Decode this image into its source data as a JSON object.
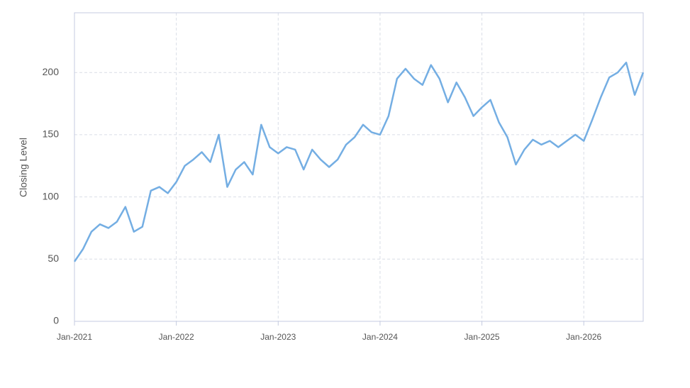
{
  "chart_data": {
    "type": "line",
    "y_label": "Closing Level",
    "x": [
      "2021-01",
      "2021-02",
      "2021-03",
      "2021-04",
      "2021-05",
      "2021-06",
      "2021-07",
      "2021-08",
      "2021-09",
      "2021-10",
      "2021-11",
      "2021-12",
      "2022-01",
      "2022-02",
      "2022-03",
      "2022-04",
      "2022-05",
      "2022-06",
      "2022-07",
      "2022-08",
      "2022-09",
      "2022-10",
      "2022-11",
      "2022-12",
      "2023-01",
      "2023-02",
      "2023-03",
      "2023-04",
      "2023-05",
      "2023-06",
      "2023-07",
      "2023-08",
      "2023-09",
      "2023-10",
      "2023-11",
      "2023-12",
      "2024-01",
      "2024-02",
      "2024-03",
      "2024-04",
      "2024-05",
      "2024-06",
      "2024-07",
      "2024-08",
      "2024-09",
      "2024-10",
      "2024-11",
      "2024-12",
      "2025-01",
      "2025-02",
      "2025-03",
      "2025-04",
      "2025-05",
      "2025-06",
      "2025-07",
      "2025-08",
      "2025-09",
      "2025-10",
      "2025-11",
      "2025-12",
      "2026-01",
      "2026-02",
      "2026-03",
      "2026-04",
      "2026-05",
      "2026-06",
      "2026-07",
      "2026-08"
    ],
    "values": [
      48,
      58,
      72,
      78,
      75,
      80,
      92,
      72,
      76,
      105,
      108,
      103,
      112,
      125,
      130,
      136,
      128,
      150,
      108,
      122,
      128,
      118,
      158,
      140,
      135,
      140,
      138,
      122,
      138,
      130,
      124,
      130,
      142,
      148,
      158,
      152,
      150,
      165,
      195,
      203,
      195,
      190,
      206,
      195,
      176,
      192,
      180,
      165,
      172,
      178,
      160,
      148,
      126,
      138,
      146,
      142,
      145,
      140,
      145,
      150,
      145,
      162,
      180,
      196,
      200,
      208,
      182,
      200
    ],
    "color": "#74aee3",
    "xlim": [
      "2021-01",
      "2026-08"
    ],
    "xticks": [
      {
        "value": "2021-01",
        "label": "Jan-2021"
      },
      {
        "value": "2022-01",
        "label": "Jan-2022"
      },
      {
        "value": "2023-01",
        "label": "Jan-2023"
      },
      {
        "value": "2024-01",
        "label": "Jan-2024"
      },
      {
        "value": "2025-01",
        "label": "Jan-2025"
      },
      {
        "value": "2026-01",
        "label": "Jan-2026"
      }
    ],
    "ylim": [
      0,
      248
    ],
    "yticks": [
      0,
      50,
      100,
      150,
      200
    ],
    "grid": true
  }
}
